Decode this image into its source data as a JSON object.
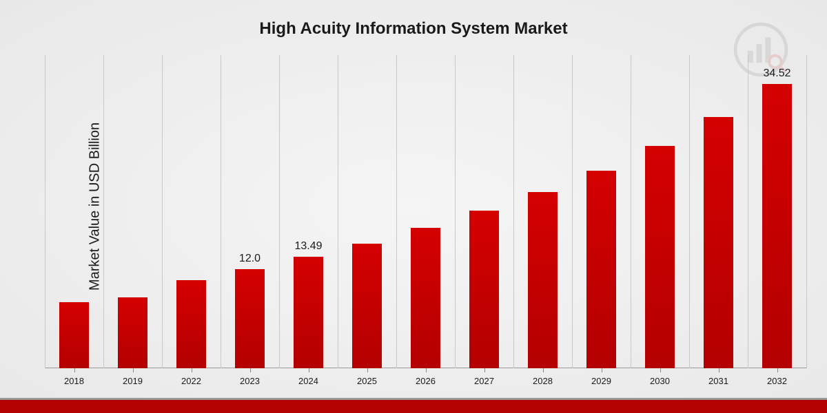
{
  "chart": {
    "type": "bar",
    "title": "High Acuity Information System Market",
    "title_fontsize": 24,
    "ylabel": "Market Value in USD Billion",
    "ylabel_fontsize": 20,
    "categories": [
      "2018",
      "2019",
      "2022",
      "2023",
      "2024",
      "2025",
      "2026",
      "2027",
      "2028",
      "2029",
      "2030",
      "2031",
      "2032"
    ],
    "values": [
      8.0,
      8.6,
      10.7,
      12.0,
      13.49,
      15.1,
      17.0,
      19.1,
      21.4,
      24.0,
      27.0,
      30.5,
      34.52
    ],
    "visible_labels": {
      "2023": "12.0",
      "2024": "13.49",
      "2032": "34.52"
    },
    "ylim_max": 38,
    "bar_color": "#c40000",
    "bar_gradient_top": "#d40000",
    "bar_gradient_bottom": "#b30000",
    "background": "radial-gradient(#f5f5f5, #e8e8e8)",
    "gridline_color": "#c8c8c8",
    "text_color": "#1a1a1a",
    "tick_fontsize": 13,
    "data_label_fontsize": 16,
    "bar_width_ratio": 0.5,
    "bottom_bar_color": "#b30000",
    "logo_opacity": 0.12
  }
}
